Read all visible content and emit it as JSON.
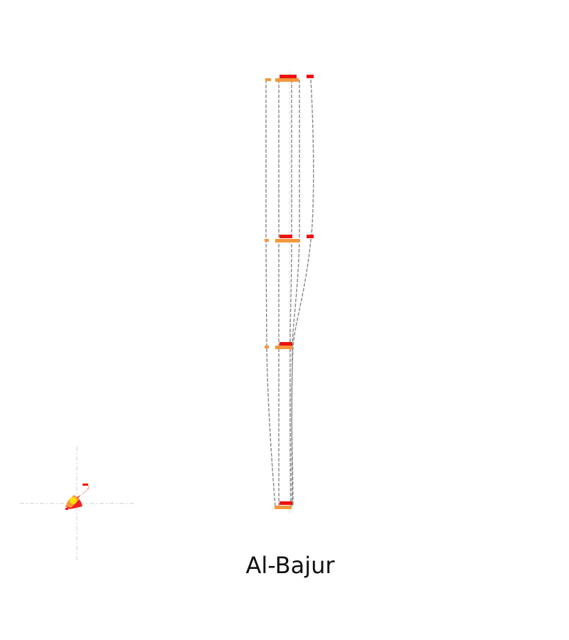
{
  "place_name": "Al-Bajur",
  "colors": {
    "background": "#ffffff",
    "outline": "#888888",
    "guide": "#cccccc",
    "marker_top": "#ee1111",
    "marker_bottom": "#f5973a",
    "inset_core": "#ffe000"
  }
}
